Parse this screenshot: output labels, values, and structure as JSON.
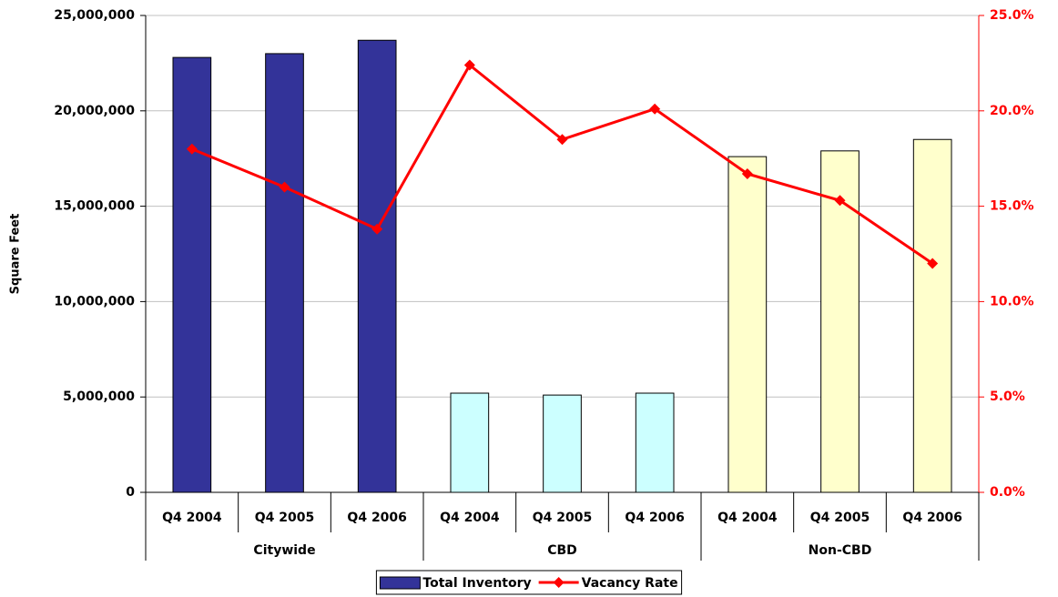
{
  "chart_data": {
    "type": "bar-line",
    "y_label": "Square Feet",
    "categories": [
      "Q4 2004",
      "Q4 2005",
      "Q4 2006",
      "Q4 2004",
      "Q4 2005",
      "Q4 2006",
      "Q4 2004",
      "Q4 2005",
      "Q4 2006"
    ],
    "groups": [
      {
        "name": "Citywide",
        "span": 3
      },
      {
        "name": "CBD",
        "span": 3
      },
      {
        "name": "Non-CBD",
        "span": 3
      }
    ],
    "series": [
      {
        "name": "Total Inventory",
        "type": "bar",
        "color": "#333399",
        "colors": [
          "#333399",
          "#333399",
          "#333399",
          "#ccffff",
          "#ccffff",
          "#ccffff",
          "#ffffcc",
          "#ffffcc",
          "#ffffcc"
        ],
        "values": [
          22800000,
          23000000,
          23700000,
          5200000,
          5100000,
          5200000,
          17600000,
          17900000,
          18500000
        ]
      },
      {
        "name": "Vacancy Rate",
        "type": "line",
        "axis": "y2",
        "color": "#ff0000",
        "values": [
          18.0,
          16.0,
          13.8,
          22.4,
          18.5,
          20.1,
          16.7,
          15.3,
          12.0
        ]
      }
    ],
    "ylim": [
      0,
      25000000
    ],
    "yticks": [
      0,
      {
        "value": 5000000,
        "label": "5,000,000"
      },
      {
        "value": 10000000,
        "label": "10,000,000"
      },
      {
        "value": 15000000,
        "label": "15,000,000"
      },
      {
        "value": 20000000,
        "label": "20,000,000"
      },
      {
        "value": 25000000,
        "label": "25,000,000"
      }
    ],
    "y2lim": [
      0,
      25
    ],
    "y2ticks": [
      {
        "value": 0,
        "label": "0.0%"
      },
      {
        "value": 5,
        "label": "5.0%"
      },
      {
        "value": 10,
        "label": "10.0%"
      },
      {
        "value": 15,
        "label": "15.0%"
      },
      {
        "value": 20,
        "label": "20.0%"
      },
      {
        "value": 25,
        "label": "25.0%"
      }
    ],
    "y2_color": "#ff0000",
    "grid": true,
    "legend": "bottom"
  }
}
